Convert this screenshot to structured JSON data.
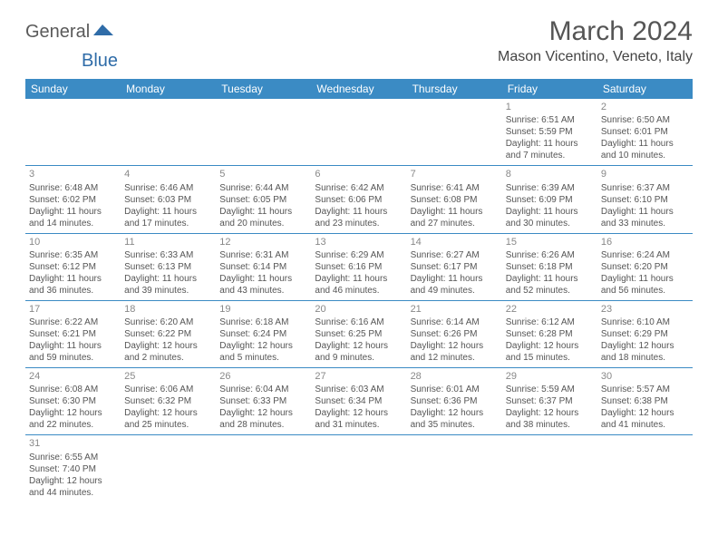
{
  "logo": {
    "part1": "General",
    "part2": "Blue"
  },
  "title": "March 2024",
  "location": "Mason Vicentino, Veneto, Italy",
  "colors": {
    "header_bg": "#3b8bc4",
    "header_text": "#ffffff",
    "row_border": "#3b8bc4",
    "daynum": "#888888",
    "body_text": "#555555",
    "logo_gray": "#5a5a5a",
    "logo_blue": "#2f6ca8"
  },
  "day_names": [
    "Sunday",
    "Monday",
    "Tuesday",
    "Wednesday",
    "Thursday",
    "Friday",
    "Saturday"
  ],
  "weeks": [
    [
      null,
      null,
      null,
      null,
      null,
      {
        "n": "1",
        "sr": "6:51 AM",
        "ss": "5:59 PM",
        "dl": "11 hours and 7 minutes."
      },
      {
        "n": "2",
        "sr": "6:50 AM",
        "ss": "6:01 PM",
        "dl": "11 hours and 10 minutes."
      }
    ],
    [
      {
        "n": "3",
        "sr": "6:48 AM",
        "ss": "6:02 PM",
        "dl": "11 hours and 14 minutes."
      },
      {
        "n": "4",
        "sr": "6:46 AM",
        "ss": "6:03 PM",
        "dl": "11 hours and 17 minutes."
      },
      {
        "n": "5",
        "sr": "6:44 AM",
        "ss": "6:05 PM",
        "dl": "11 hours and 20 minutes."
      },
      {
        "n": "6",
        "sr": "6:42 AM",
        "ss": "6:06 PM",
        "dl": "11 hours and 23 minutes."
      },
      {
        "n": "7",
        "sr": "6:41 AM",
        "ss": "6:08 PM",
        "dl": "11 hours and 27 minutes."
      },
      {
        "n": "8",
        "sr": "6:39 AM",
        "ss": "6:09 PM",
        "dl": "11 hours and 30 minutes."
      },
      {
        "n": "9",
        "sr": "6:37 AM",
        "ss": "6:10 PM",
        "dl": "11 hours and 33 minutes."
      }
    ],
    [
      {
        "n": "10",
        "sr": "6:35 AM",
        "ss": "6:12 PM",
        "dl": "11 hours and 36 minutes."
      },
      {
        "n": "11",
        "sr": "6:33 AM",
        "ss": "6:13 PM",
        "dl": "11 hours and 39 minutes."
      },
      {
        "n": "12",
        "sr": "6:31 AM",
        "ss": "6:14 PM",
        "dl": "11 hours and 43 minutes."
      },
      {
        "n": "13",
        "sr": "6:29 AM",
        "ss": "6:16 PM",
        "dl": "11 hours and 46 minutes."
      },
      {
        "n": "14",
        "sr": "6:27 AM",
        "ss": "6:17 PM",
        "dl": "11 hours and 49 minutes."
      },
      {
        "n": "15",
        "sr": "6:26 AM",
        "ss": "6:18 PM",
        "dl": "11 hours and 52 minutes."
      },
      {
        "n": "16",
        "sr": "6:24 AM",
        "ss": "6:20 PM",
        "dl": "11 hours and 56 minutes."
      }
    ],
    [
      {
        "n": "17",
        "sr": "6:22 AM",
        "ss": "6:21 PM",
        "dl": "11 hours and 59 minutes."
      },
      {
        "n": "18",
        "sr": "6:20 AM",
        "ss": "6:22 PM",
        "dl": "12 hours and 2 minutes."
      },
      {
        "n": "19",
        "sr": "6:18 AM",
        "ss": "6:24 PM",
        "dl": "12 hours and 5 minutes."
      },
      {
        "n": "20",
        "sr": "6:16 AM",
        "ss": "6:25 PM",
        "dl": "12 hours and 9 minutes."
      },
      {
        "n": "21",
        "sr": "6:14 AM",
        "ss": "6:26 PM",
        "dl": "12 hours and 12 minutes."
      },
      {
        "n": "22",
        "sr": "6:12 AM",
        "ss": "6:28 PM",
        "dl": "12 hours and 15 minutes."
      },
      {
        "n": "23",
        "sr": "6:10 AM",
        "ss": "6:29 PM",
        "dl": "12 hours and 18 minutes."
      }
    ],
    [
      {
        "n": "24",
        "sr": "6:08 AM",
        "ss": "6:30 PM",
        "dl": "12 hours and 22 minutes."
      },
      {
        "n": "25",
        "sr": "6:06 AM",
        "ss": "6:32 PM",
        "dl": "12 hours and 25 minutes."
      },
      {
        "n": "26",
        "sr": "6:04 AM",
        "ss": "6:33 PM",
        "dl": "12 hours and 28 minutes."
      },
      {
        "n": "27",
        "sr": "6:03 AM",
        "ss": "6:34 PM",
        "dl": "12 hours and 31 minutes."
      },
      {
        "n": "28",
        "sr": "6:01 AM",
        "ss": "6:36 PM",
        "dl": "12 hours and 35 minutes."
      },
      {
        "n": "29",
        "sr": "5:59 AM",
        "ss": "6:37 PM",
        "dl": "12 hours and 38 minutes."
      },
      {
        "n": "30",
        "sr": "5:57 AM",
        "ss": "6:38 PM",
        "dl": "12 hours and 41 minutes."
      }
    ],
    [
      {
        "n": "31",
        "sr": "6:55 AM",
        "ss": "7:40 PM",
        "dl": "12 hours and 44 minutes."
      },
      null,
      null,
      null,
      null,
      null,
      null
    ]
  ],
  "labels": {
    "sunrise": "Sunrise: ",
    "sunset": "Sunset: ",
    "daylight": "Daylight: "
  }
}
